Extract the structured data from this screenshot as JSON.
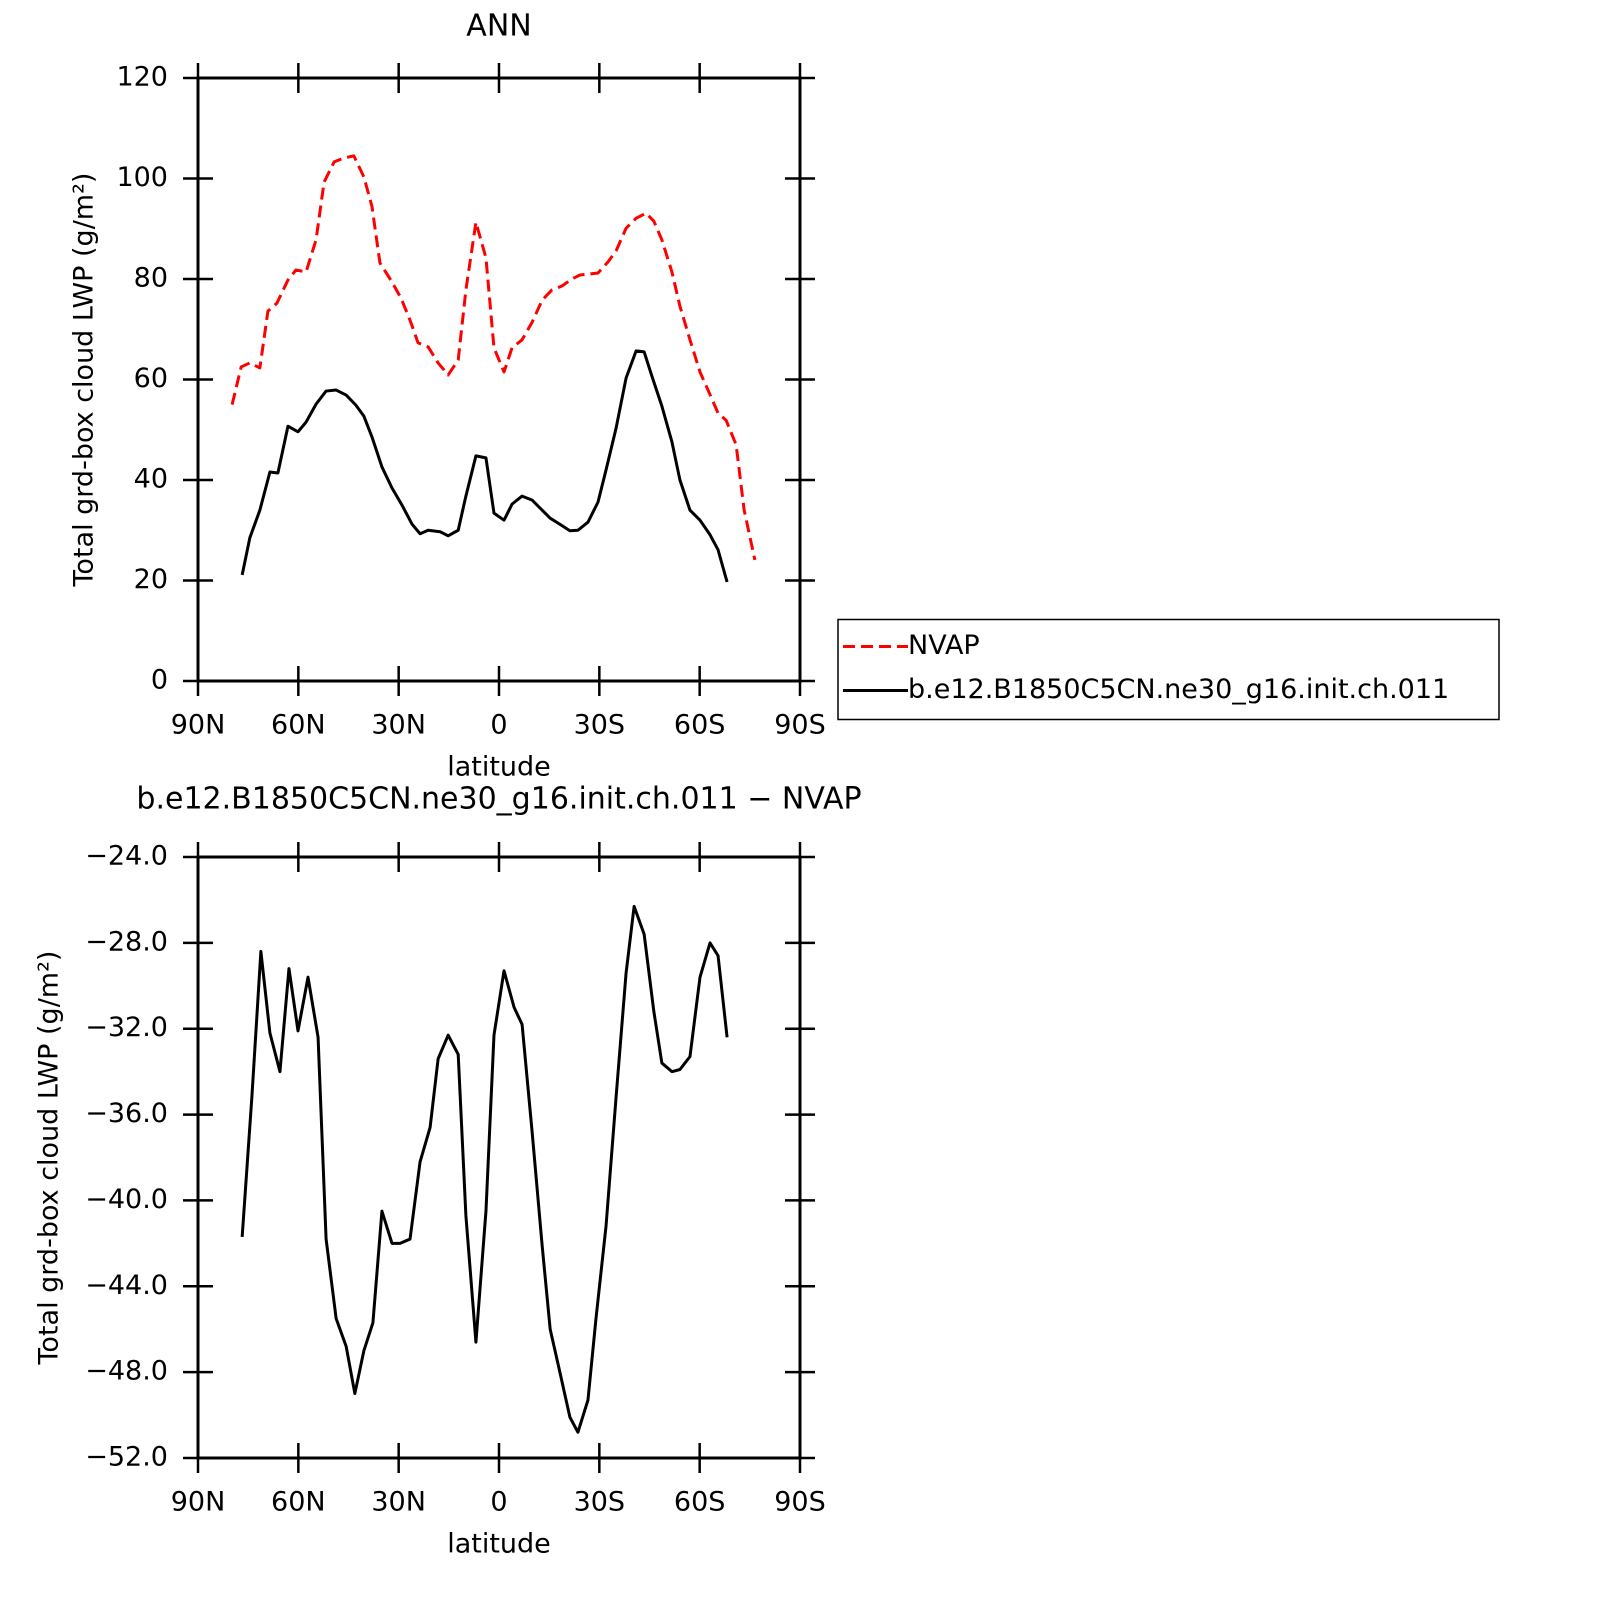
{
  "chart_data": [
    {
      "type": "line",
      "title": "ANN",
      "xlabel": "latitude",
      "ylabel": "Total grd-box cloud LWP (g/m²)",
      "xlim": [
        90,
        -90
      ],
      "xticks": [
        {
          "value": 90,
          "label": "90N"
        },
        {
          "value": 60,
          "label": "60N"
        },
        {
          "value": 30,
          "label": "30N"
        },
        0,
        {
          "value": -30,
          "label": "30S"
        },
        {
          "value": -60,
          "label": "60S"
        },
        {
          "value": -90,
          "label": "90S"
        }
      ],
      "ylim": [
        0,
        120
      ],
      "yticks": [
        0,
        20,
        40,
        60,
        80,
        100,
        120
      ],
      "legend": "right",
      "series": [
        {
          "name": "NVAP",
          "color": "#ff0000",
          "style": "dashed",
          "x": [
            79.8,
            77.1,
            74.5,
            71.5,
            69.1,
            66.4,
            63.1,
            60.7,
            57.7,
            54.7,
            52.3,
            49.3,
            46.3,
            43.4,
            40.4,
            38.0,
            35.6,
            32.0,
            29.3,
            26.6,
            24.2,
            21.2,
            18.2,
            15.2,
            12.2,
            9.9,
            6.9,
            3.9,
            1.5,
            -1.5,
            -3.9,
            -6.9,
            -9.9,
            -12.9,
            -15.8,
            -18.8,
            -21.8,
            -24.2,
            -27.2,
            -29.6,
            -32.6,
            -35.0,
            -38.0,
            -41.0,
            -44.0,
            -46.3,
            -48.7,
            -51.7,
            -54.1,
            -57.1,
            -60.1,
            -62.5,
            -65.5,
            -67.9,
            -70.9,
            -73.3,
            -76.5
          ],
          "values": [
            55,
            62.5,
            63.3,
            62.3,
            73.6,
            75.2,
            79.8,
            81.8,
            81.4,
            87.8,
            99.3,
            103.3,
            104.1,
            104.5,
            100.3,
            94.5,
            83.2,
            79.4,
            76.2,
            71.8,
            67.3,
            66.5,
            63.3,
            60.9,
            63.9,
            77.8,
            91.3,
            84.2,
            66.3,
            61.5,
            66.3,
            67.9,
            71.4,
            75.8,
            77.8,
            78.6,
            80.0,
            80.8,
            81.0,
            81.2,
            83.4,
            85.6,
            90.1,
            92.1,
            93.1,
            91.5,
            87.8,
            81.4,
            74.6,
            67.9,
            61.5,
            57.9,
            53.3,
            51.9,
            47.0,
            34.0,
            24.1
          ]
        },
        {
          "name": "b.e12.B1850C5CN.ne30_g16.init.ch.011",
          "color": "#000000",
          "style": "solid",
          "x": [
            76.8,
            74.5,
            71.5,
            68.5,
            66.1,
            63.1,
            60.1,
            57.7,
            54.7,
            51.7,
            48.7,
            45.7,
            42.8,
            40.4,
            38.0,
            35.0,
            32.0,
            29.0,
            26.0,
            23.6,
            21.2,
            17.6,
            15.2,
            12.2,
            9.9,
            6.9,
            3.9,
            1.5,
            -1.5,
            -3.9,
            -6.9,
            -9.9,
            -12.3,
            -15.3,
            -18.2,
            -21.2,
            -23.6,
            -26.6,
            -29.6,
            -32.0,
            -35.0,
            -38.0,
            -41.0,
            -43.4,
            -45.7,
            -48.7,
            -51.7,
            -54.1,
            -57.1,
            -60.1,
            -63.1,
            -65.5,
            -68.2
          ],
          "values": [
            21.1,
            28.5,
            34.0,
            41.6,
            41.4,
            50.7,
            49.6,
            51.5,
            55.1,
            57.7,
            57.9,
            56.9,
            54.9,
            52.7,
            48.6,
            42.6,
            38.4,
            35.0,
            31.2,
            29.3,
            30.0,
            29.7,
            28.9,
            30.0,
            36.8,
            44.8,
            44.4,
            33.4,
            32.0,
            35.2,
            36.8,
            36.0,
            34.4,
            32.4,
            31.2,
            29.9,
            30.0,
            31.6,
            35.6,
            42.0,
            50.3,
            60.3,
            65.7,
            65.5,
            60.7,
            54.7,
            47.6,
            40.0,
            34.0,
            32.0,
            29.1,
            26.1,
            19.7
          ]
        }
      ]
    },
    {
      "type": "line",
      "title": "b.e12.B1850C5CN.ne30_g16.init.ch.011 − NVAP",
      "xlabel": "latitude",
      "ylabel": "Total grd-box cloud LWP (g/m²)",
      "xlim": [
        90,
        -90
      ],
      "xticks": [
        {
          "value": 90,
          "label": "90N"
        },
        {
          "value": 60,
          "label": "60N"
        },
        {
          "value": 30,
          "label": "30N"
        },
        0,
        {
          "value": -30,
          "label": "30S"
        },
        {
          "value": -60,
          "label": "60S"
        },
        {
          "value": -90,
          "label": "90S"
        }
      ],
      "ylim": [
        -52,
        -24
      ],
      "yticks": [
        {
          "value": -24,
          "label": "−24.0"
        },
        {
          "value": -28,
          "label": "−28.0"
        },
        {
          "value": -32,
          "label": "−32.0"
        },
        {
          "value": -36,
          "label": "−36.0"
        },
        {
          "value": -40,
          "label": "−40.0"
        },
        {
          "value": -44,
          "label": "−44.0"
        },
        {
          "value": -48,
          "label": "−48.0"
        },
        {
          "value": -52,
          "label": "−52.0"
        }
      ],
      "series": [
        {
          "color": "#000000",
          "style": "solid",
          "x": [
            76.8,
            73.9,
            71.2,
            68.5,
            65.5,
            62.8,
            60.1,
            57.1,
            54.1,
            51.7,
            48.7,
            45.7,
            43.1,
            40.4,
            37.7,
            35.0,
            32.0,
            29.6,
            26.6,
            23.6,
            20.6,
            18.2,
            15.2,
            12.2,
            9.9,
            6.9,
            3.9,
            1.5,
            -1.5,
            -4.5,
            -6.9,
            -9.9,
            -12.9,
            -15.3,
            -18.2,
            -21.2,
            -23.6,
            -26.6,
            -29.0,
            -32.0,
            -35.0,
            -38.0,
            -40.4,
            -43.4,
            -46.3,
            -48.7,
            -51.7,
            -54.1,
            -57.1,
            -60.1,
            -63.1,
            -65.5,
            -68.2
          ],
          "values": [
            -41.7,
            -35.2,
            -28.4,
            -32.2,
            -34.0,
            -29.2,
            -32.1,
            -29.6,
            -32.4,
            -41.8,
            -45.5,
            -46.8,
            -49.0,
            -47.0,
            -45.7,
            -40.5,
            -42.0,
            -42.0,
            -41.8,
            -38.2,
            -36.6,
            -33.4,
            -32.3,
            -33.2,
            -40.7,
            -46.6,
            -40.5,
            -32.3,
            -29.3,
            -31.0,
            -31.8,
            -36.8,
            -42.1,
            -46.0,
            -48.0,
            -50.1,
            -50.8,
            -49.3,
            -45.5,
            -41.2,
            -35.2,
            -29.4,
            -26.3,
            -27.6,
            -31.2,
            -33.6,
            -34.0,
            -33.9,
            -33.3,
            -29.6,
            -28.0,
            -28.6,
            -32.4
          ]
        }
      ]
    }
  ]
}
